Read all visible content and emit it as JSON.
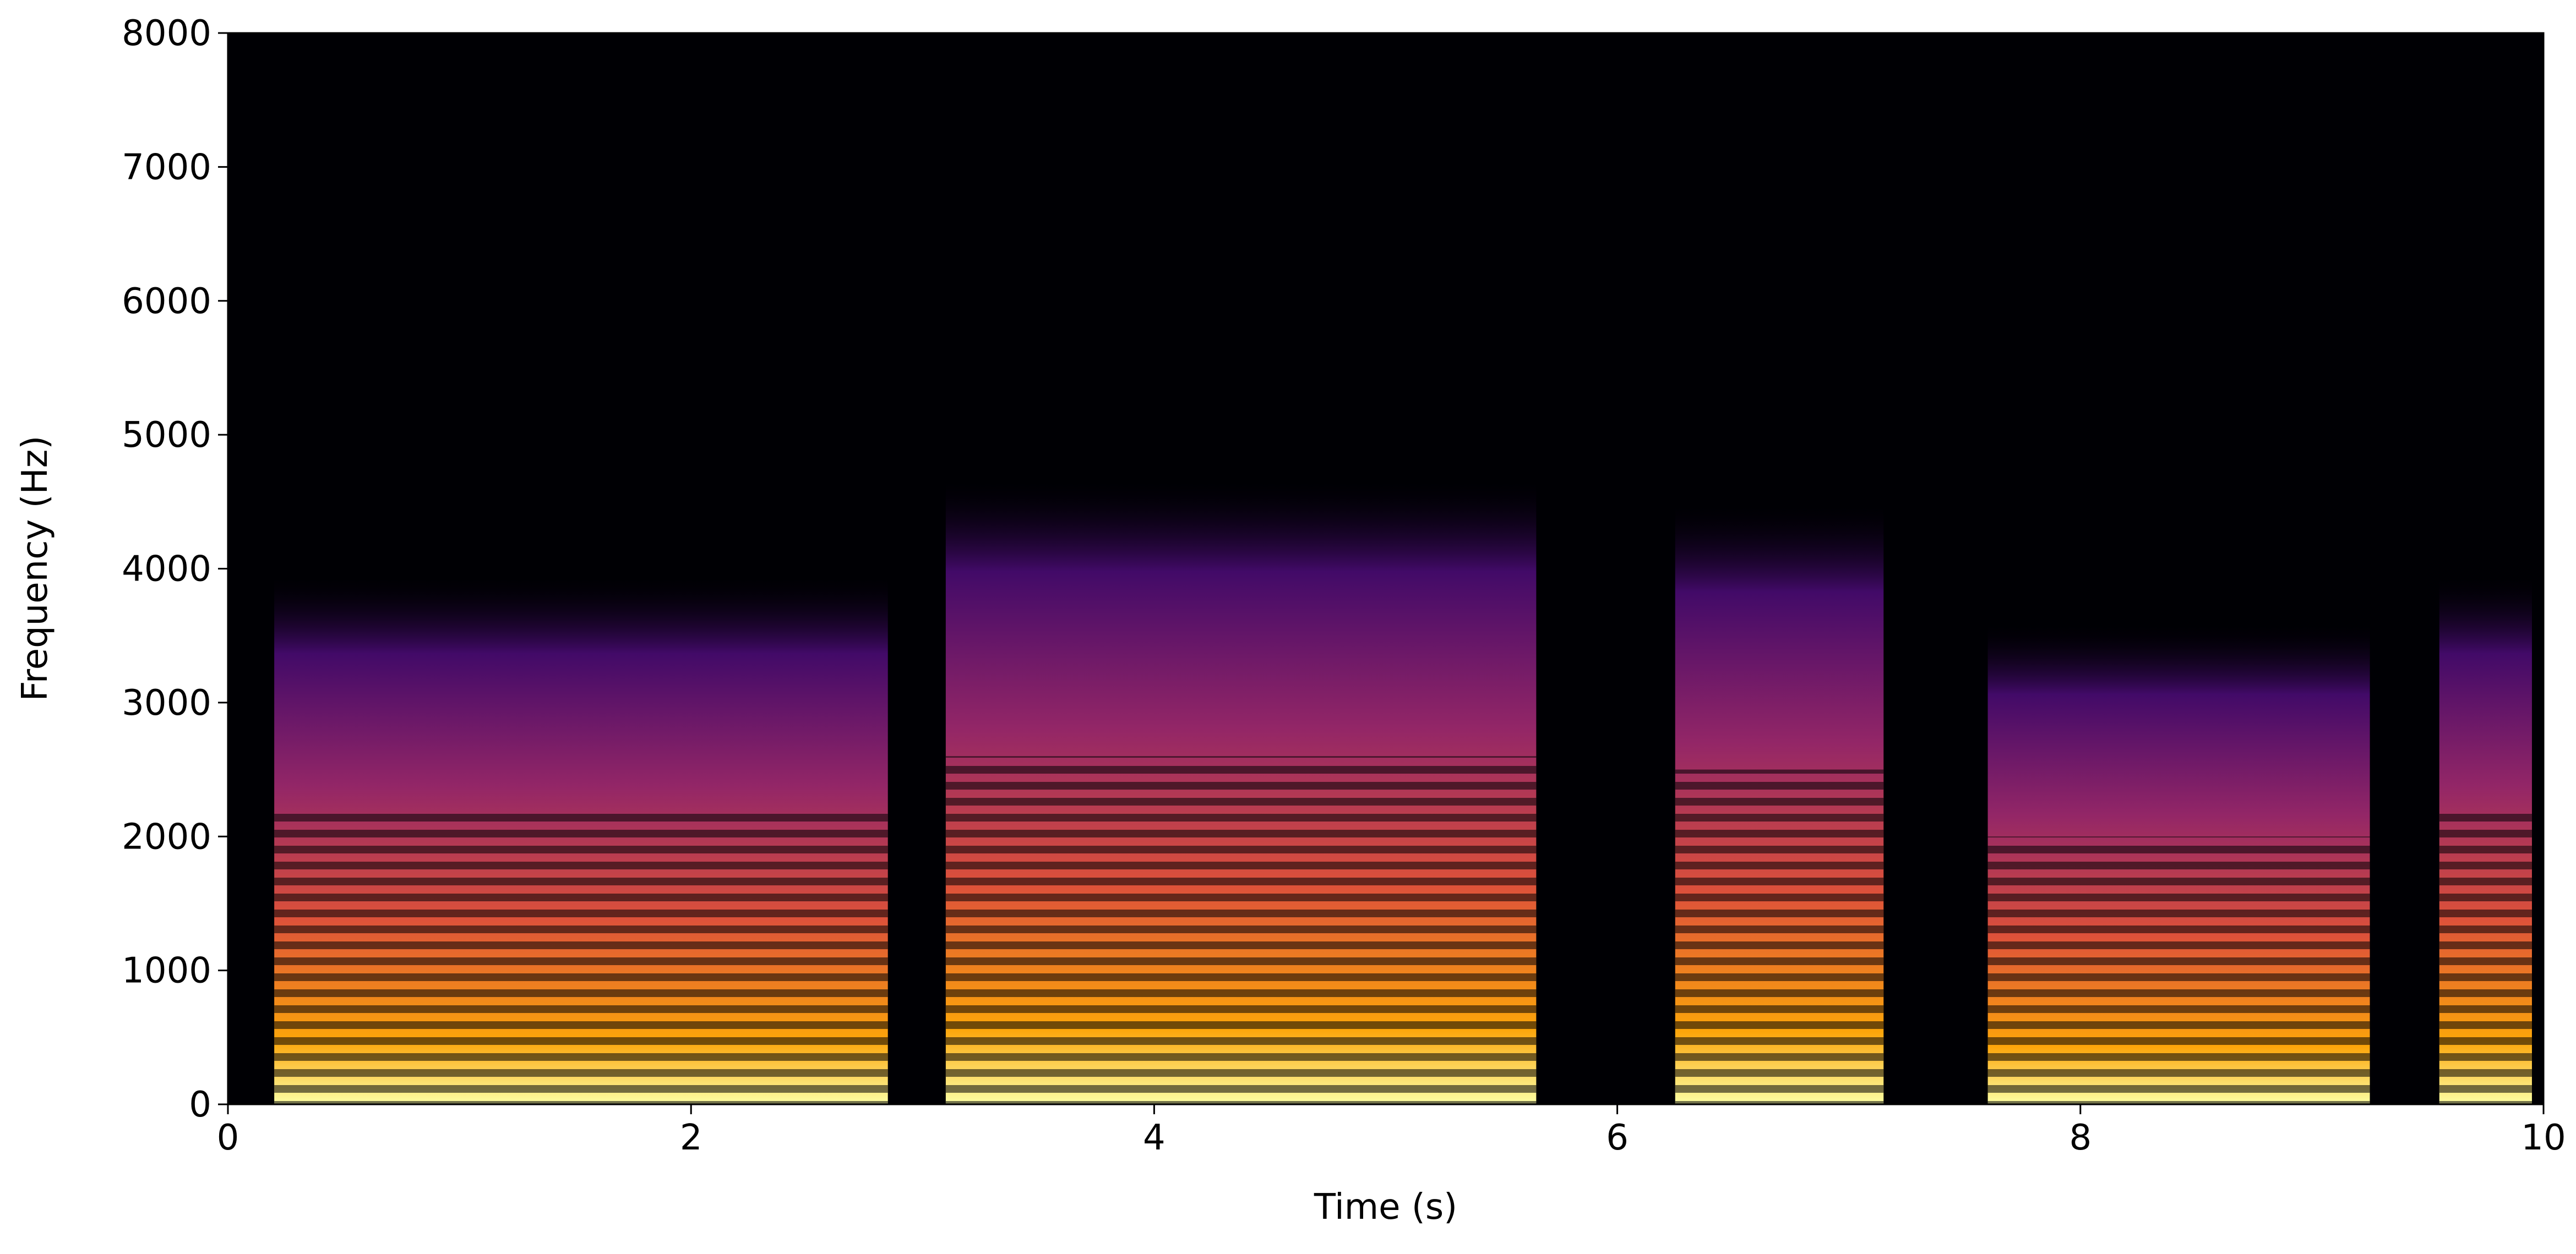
{
  "chart_data": {
    "type": "spectrogram",
    "xlabel": "Time (s)",
    "ylabel": "Frequency (Hz)",
    "xlim": [
      0,
      10
    ],
    "ylim": [
      0,
      8000
    ],
    "xticks": [
      0,
      2,
      4,
      6,
      8,
      10
    ],
    "yticks": [
      0,
      1000,
      2000,
      3000,
      4000,
      5000,
      6000,
      7000,
      8000
    ],
    "segments": [
      {
        "start": 0.2,
        "end": 2.85,
        "fmax": 2200
      },
      {
        "start": 3.1,
        "end": 5.65,
        "fmax": 2600
      },
      {
        "start": 6.25,
        "end": 7.15,
        "fmax": 2500
      },
      {
        "start": 7.6,
        "end": 9.25,
        "fmax": 2000
      },
      {
        "start": 9.55,
        "end": 9.95,
        "fmax": 2200
      }
    ]
  }
}
